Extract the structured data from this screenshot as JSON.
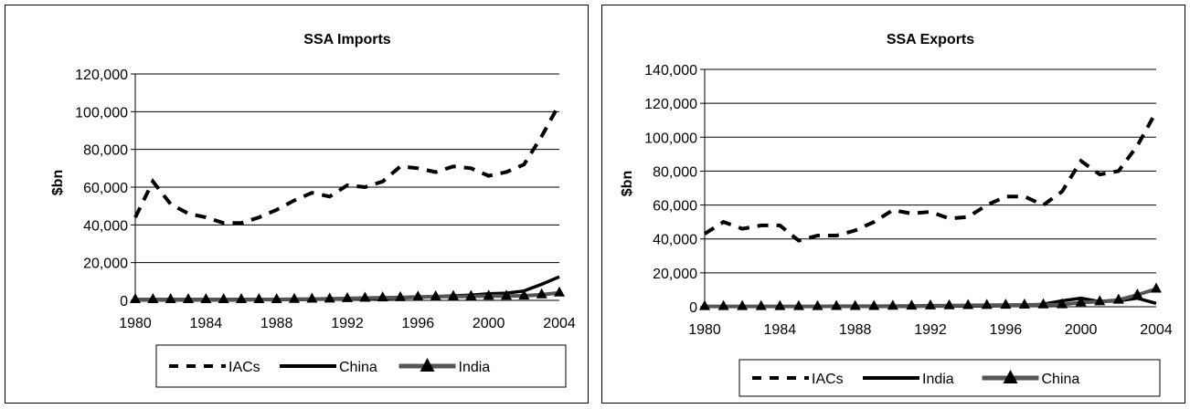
{
  "chart_data": [
    {
      "type": "line",
      "title": "SSA Imports",
      "ylabel": "$bn",
      "xlabel": "",
      "xlim": [
        1980,
        2004
      ],
      "ylim": [
        0,
        120000
      ],
      "x_ticks": [
        1980,
        1984,
        1988,
        1992,
        1996,
        2000,
        2004
      ],
      "y_ticks": [
        0,
        20000,
        40000,
        60000,
        80000,
        100000,
        120000
      ],
      "y_tick_labels": [
        "0",
        "20,000",
        "40,000",
        "60,000",
        "80,000",
        "100,000",
        "120,000"
      ],
      "x": [
        1980,
        1981,
        1982,
        1983,
        1984,
        1985,
        1986,
        1987,
        1988,
        1989,
        1990,
        1991,
        1992,
        1993,
        1994,
        1995,
        1996,
        1997,
        1998,
        1999,
        2000,
        2001,
        2002,
        2003,
        2004
      ],
      "grid": true,
      "legend_position": "bottom",
      "series": [
        {
          "name": "IACs",
          "style": "dashed",
          "color": "#000000",
          "values": [
            44000,
            63000,
            51000,
            46000,
            44000,
            41000,
            41000,
            44000,
            48000,
            53000,
            57000,
            55000,
            61000,
            60000,
            63000,
            71000,
            70000,
            68000,
            71000,
            70000,
            66000,
            68000,
            72000,
            87000,
            104000
          ]
        },
        {
          "name": "China",
          "style": "solid",
          "color": "#000000",
          "values": [
            200,
            200,
            200,
            200,
            200,
            200,
            200,
            300,
            300,
            400,
            500,
            600,
            700,
            800,
            1000,
            1300,
            1600,
            2000,
            2400,
            2800,
            3500,
            3800,
            5000,
            8500,
            12500
          ]
        },
        {
          "name": "India",
          "style": "markers",
          "color": "#555555",
          "values": [
            500,
            500,
            500,
            500,
            500,
            500,
            500,
            500,
            500,
            600,
            700,
            800,
            1000,
            1200,
            1400,
            1500,
            1800,
            2000,
            2100,
            2200,
            2300,
            2300,
            2400,
            3000,
            4000
          ]
        }
      ]
    },
    {
      "type": "line",
      "title": "SSA Exports",
      "ylabel": "$bn",
      "xlabel": "",
      "xlim": [
        1980,
        2004
      ],
      "ylim": [
        0,
        140000
      ],
      "x_ticks": [
        1980,
        1984,
        1988,
        1992,
        1996,
        2000,
        2004
      ],
      "y_ticks": [
        0,
        20000,
        40000,
        60000,
        80000,
        100000,
        120000,
        140000
      ],
      "y_tick_labels": [
        "0",
        "20,000",
        "40,000",
        "60,000",
        "80,000",
        "100,000",
        "120,000",
        "140,000"
      ],
      "x": [
        1980,
        1981,
        1982,
        1983,
        1984,
        1985,
        1986,
        1987,
        1988,
        1989,
        1990,
        1991,
        1992,
        1993,
        1994,
        1995,
        1996,
        1997,
        1998,
        1999,
        2000,
        2001,
        2002,
        2003,
        2004
      ],
      "grid": true,
      "legend_position": "bottom",
      "series": [
        {
          "name": "IACs",
          "style": "dashed",
          "color": "#000000",
          "values": [
            43000,
            50000,
            46000,
            48000,
            48000,
            39000,
            42000,
            42000,
            45000,
            50000,
            57000,
            55000,
            56000,
            52000,
            53000,
            60000,
            65000,
            65000,
            60000,
            68000,
            86000,
            78000,
            80000,
            95000,
            115000
          ]
        },
        {
          "name": "India",
          "style": "solid",
          "color": "#000000",
          "values": [
            100,
            100,
            100,
            100,
            100,
            100,
            100,
            100,
            100,
            100,
            200,
            200,
            300,
            300,
            400,
            500,
            600,
            800,
            1500,
            3500,
            5000,
            3000,
            3500,
            5000,
            2000
          ]
        },
        {
          "name": "China",
          "style": "markers",
          "color": "#555555",
          "values": [
            200,
            200,
            200,
            200,
            200,
            200,
            200,
            300,
            300,
            300,
            400,
            500,
            600,
            700,
            800,
            900,
            1000,
            1100,
            1200,
            1300,
            2500,
            3000,
            4000,
            7000,
            10500
          ]
        }
      ]
    }
  ]
}
